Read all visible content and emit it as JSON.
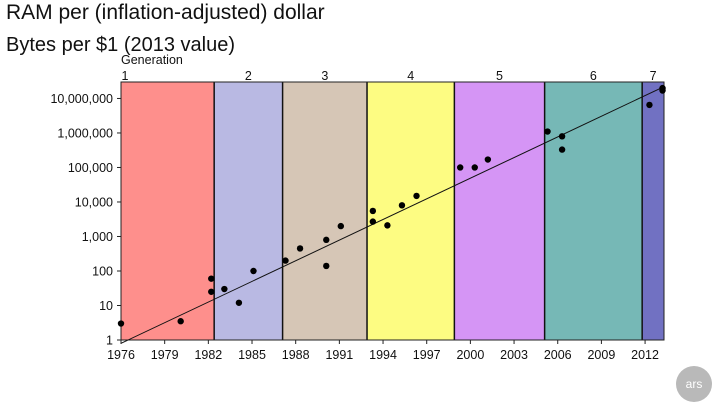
{
  "chart_data": {
    "type": "scatter",
    "title": "RAM per (inflation-adjusted) dollar",
    "subtitle": "Bytes per $1 (2013 value)",
    "y_scale": "log",
    "ylim": [
      1,
      30000000
    ],
    "xlim": [
      1976,
      2013
    ],
    "x_ticks": [
      1976,
      1979,
      1982,
      1985,
      1988,
      1991,
      1994,
      1997,
      2000,
      2003,
      2006,
      2009,
      2012
    ],
    "y_ticks": [
      1,
      10,
      100,
      1000,
      10000,
      100000,
      1000000,
      10000000
    ],
    "y_tick_labels": [
      "1",
      "10",
      "100",
      "1,000",
      "10,000",
      "100,000",
      "1,000,000",
      "10,000,000"
    ],
    "generation_label": "Generation",
    "generations": [
      {
        "label": "1",
        "start": 1976,
        "end": 1982.4,
        "color": "#fe8f8c"
      },
      {
        "label": "2",
        "start": 1982.4,
        "end": 1987.1,
        "color": "#b9b9e3"
      },
      {
        "label": "3",
        "start": 1987.1,
        "end": 1992.9,
        "color": "#d6c6b6"
      },
      {
        "label": "4",
        "start": 1992.9,
        "end": 1998.9,
        "color": "#fdfc82"
      },
      {
        "label": "5",
        "start": 1998.9,
        "end": 2005.1,
        "color": "#d595f5"
      },
      {
        "label": "6",
        "start": 2005.1,
        "end": 2011.8,
        "color": "#76b8b6"
      },
      {
        "label": "7",
        "start": 2011.8,
        "end": 2013.4,
        "color": "#7171c2"
      }
    ],
    "points": [
      {
        "x": 1976.0,
        "y": 3
      },
      {
        "x": 1980.1,
        "y": 3.5
      },
      {
        "x": 1982.2,
        "y": 25
      },
      {
        "x": 1982.2,
        "y": 60
      },
      {
        "x": 1983.1,
        "y": 30
      },
      {
        "x": 1984.1,
        "y": 12
      },
      {
        "x": 1985.1,
        "y": 100
      },
      {
        "x": 1987.3,
        "y": 200
      },
      {
        "x": 1988.3,
        "y": 450
      },
      {
        "x": 1990.1,
        "y": 800
      },
      {
        "x": 1990.1,
        "y": 140
      },
      {
        "x": 1991.1,
        "y": 2000
      },
      {
        "x": 1993.3,
        "y": 5500
      },
      {
        "x": 1993.3,
        "y": 2700
      },
      {
        "x": 1994.3,
        "y": 2100
      },
      {
        "x": 1995.3,
        "y": 8000
      },
      {
        "x": 1996.3,
        "y": 15000
      },
      {
        "x": 1999.3,
        "y": 100000
      },
      {
        "x": 2000.3,
        "y": 100000
      },
      {
        "x": 2001.2,
        "y": 170000
      },
      {
        "x": 2005.3,
        "y": 1100000
      },
      {
        "x": 2006.3,
        "y": 800000
      },
      {
        "x": 2006.3,
        "y": 330000
      },
      {
        "x": 2012.3,
        "y": 6500000
      },
      {
        "x": 2013.2,
        "y": 20000000
      },
      {
        "x": 2013.2,
        "y": 17000000
      }
    ],
    "trend_line": {
      "x0": 1976,
      "y0": 0.8,
      "x1": 2013.3,
      "y1": 22000000
    },
    "grid": false
  },
  "logo": {
    "text": "ars"
  }
}
